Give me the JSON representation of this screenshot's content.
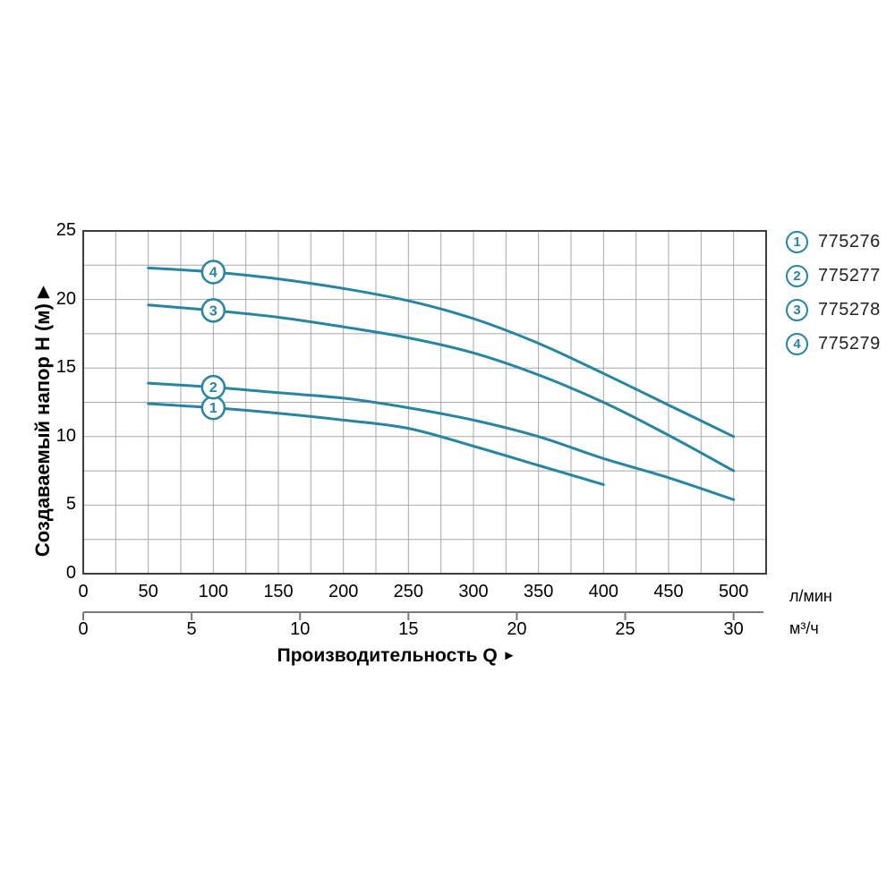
{
  "y_axis": {
    "title": "Создаваемый напор Н (м)",
    "arrow": "▶",
    "ticks": [
      25,
      20,
      15,
      10,
      5,
      0
    ]
  },
  "x_axis": {
    "title": "Производительность Q",
    "arrow": "►",
    "primary": {
      "unit": "л/мин",
      "ticks": [
        0,
        50,
        100,
        150,
        200,
        250,
        300,
        350,
        400,
        450,
        500
      ]
    },
    "secondary": {
      "unit": "м³/ч",
      "ticks": [
        0,
        5,
        10,
        15,
        20,
        25,
        30
      ]
    }
  },
  "legend": [
    {
      "marker": "1",
      "label": "775276"
    },
    {
      "marker": "2",
      "label": "775277"
    },
    {
      "marker": "3",
      "label": "775278"
    },
    {
      "marker": "4",
      "label": "775279"
    }
  ],
  "chart_data": {
    "type": "line",
    "title": "",
    "xlabel": "Производительность Q",
    "ylabel": "Создаваемый напор Н (м)",
    "x_unit_primary": "л/мин",
    "x_unit_secondary": "м³/ч",
    "xlim_lmin": [
      0,
      525
    ],
    "xlim_m3h": [
      0,
      31.5
    ],
    "ylim": [
      0,
      25
    ],
    "grid": {
      "on": true,
      "x_step_lmin": 25,
      "y_step_m": 2.5
    },
    "legend_position": "right-top",
    "marker_q_lmin": 100,
    "series": [
      {
        "name": "775276",
        "marker": "1",
        "points": [
          [
            50,
            12.4
          ],
          [
            100,
            12.1
          ],
          [
            150,
            11.7
          ],
          [
            200,
            11.2
          ],
          [
            250,
            10.6
          ],
          [
            300,
            9.3
          ],
          [
            350,
            7.9
          ],
          [
            400,
            6.5
          ]
        ]
      },
      {
        "name": "775277",
        "marker": "2",
        "points": [
          [
            50,
            13.9
          ],
          [
            100,
            13.6
          ],
          [
            150,
            13.2
          ],
          [
            200,
            12.8
          ],
          [
            250,
            12.1
          ],
          [
            300,
            11.2
          ],
          [
            350,
            10.0
          ],
          [
            400,
            8.4
          ],
          [
            450,
            7.0
          ],
          [
            500,
            5.4
          ]
        ]
      },
      {
        "name": "775278",
        "marker": "3",
        "points": [
          [
            50,
            19.6
          ],
          [
            100,
            19.2
          ],
          [
            150,
            18.7
          ],
          [
            200,
            18.0
          ],
          [
            250,
            17.2
          ],
          [
            300,
            16.1
          ],
          [
            350,
            14.5
          ],
          [
            400,
            12.5
          ],
          [
            450,
            10.1
          ],
          [
            500,
            7.5
          ]
        ]
      },
      {
        "name": "775279",
        "marker": "4",
        "points": [
          [
            50,
            22.3
          ],
          [
            100,
            22.0
          ],
          [
            150,
            21.5
          ],
          [
            200,
            20.8
          ],
          [
            250,
            19.9
          ],
          [
            300,
            18.6
          ],
          [
            350,
            16.8
          ],
          [
            400,
            14.6
          ],
          [
            450,
            12.3
          ],
          [
            500,
            10.0
          ]
        ]
      }
    ],
    "colors": {
      "curve": "#2585a4",
      "grid": "#a8a8a8",
      "border": "#3d3d3d",
      "secondary_axis": "#7a7a7a",
      "text": "#1a1a1a",
      "background": "#ffffff"
    }
  }
}
